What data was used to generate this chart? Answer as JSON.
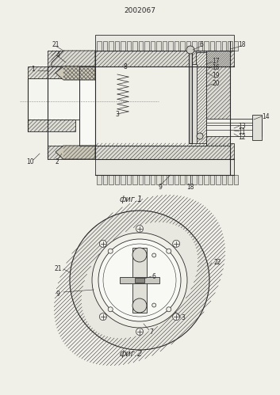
{
  "title": "2002067",
  "fig1_label": "фиг.1",
  "fig2_label": "фиг.2",
  "bg_color": "#f0efe8",
  "line_color": "#2a2a2a",
  "figsize": [
    3.53,
    4.99
  ],
  "dpi": 100
}
